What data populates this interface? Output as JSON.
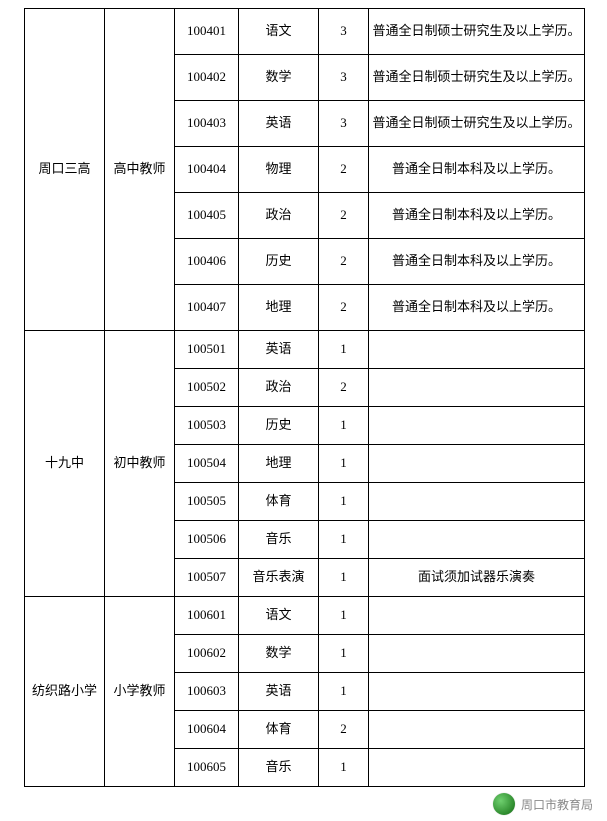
{
  "groups": [
    {
      "school": "周口三高",
      "category": "高中教师",
      "rows": [
        {
          "code": "100401",
          "subject": "语文",
          "count": "3",
          "remark": "普通全日制硕士研究生及以上学历。"
        },
        {
          "code": "100402",
          "subject": "数学",
          "count": "3",
          "remark": "普通全日制硕士研究生及以上学历。"
        },
        {
          "code": "100403",
          "subject": "英语",
          "count": "3",
          "remark": "普通全日制硕士研究生及以上学历。"
        },
        {
          "code": "100404",
          "subject": "物理",
          "count": "2",
          "remark": "普通全日制本科及以上学历。"
        },
        {
          "code": "100405",
          "subject": "政治",
          "count": "2",
          "remark": "普通全日制本科及以上学历。"
        },
        {
          "code": "100406",
          "subject": "历史",
          "count": "2",
          "remark": "普通全日制本科及以上学历。"
        },
        {
          "code": "100407",
          "subject": "地理",
          "count": "2",
          "remark": "普通全日制本科及以上学历。"
        }
      ]
    },
    {
      "school": "十九中",
      "category": "初中教师",
      "rows": [
        {
          "code": "100501",
          "subject": "英语",
          "count": "1",
          "remark": ""
        },
        {
          "code": "100502",
          "subject": "政治",
          "count": "2",
          "remark": ""
        },
        {
          "code": "100503",
          "subject": "历史",
          "count": "1",
          "remark": ""
        },
        {
          "code": "100504",
          "subject": "地理",
          "count": "1",
          "remark": ""
        },
        {
          "code": "100505",
          "subject": "体育",
          "count": "1",
          "remark": ""
        },
        {
          "code": "100506",
          "subject": "音乐",
          "count": "1",
          "remark": ""
        },
        {
          "code": "100507",
          "subject": "音乐表演",
          "count": "1",
          "remark": "面试须加试器乐演奏"
        }
      ]
    },
    {
      "school": "纺织路小学",
      "category": "小学教师",
      "rows": [
        {
          "code": "100601",
          "subject": "语文",
          "count": "1",
          "remark": ""
        },
        {
          "code": "100602",
          "subject": "数学",
          "count": "1",
          "remark": ""
        },
        {
          "code": "100603",
          "subject": "英语",
          "count": "1",
          "remark": ""
        },
        {
          "code": "100604",
          "subject": "体育",
          "count": "2",
          "remark": ""
        },
        {
          "code": "100605",
          "subject": "音乐",
          "count": "1",
          "remark": ""
        }
      ]
    }
  ],
  "footer": {
    "source": "周口市教育局"
  }
}
